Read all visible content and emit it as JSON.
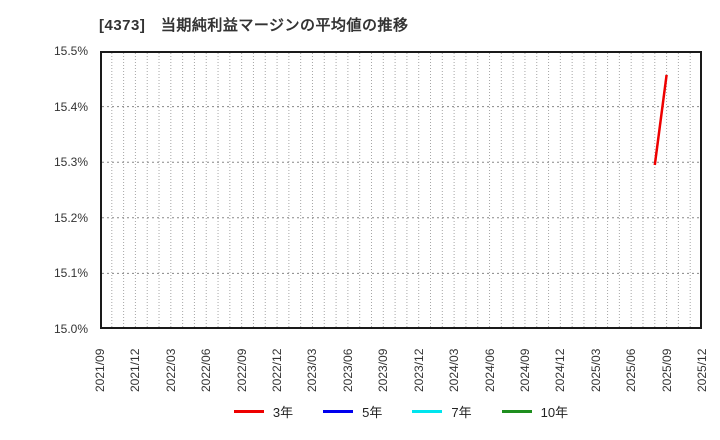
{
  "chart": {
    "title": "[4373]　当期純利益マージンの平均値の推移"
  },
  "chart_data": {
    "type": "line",
    "title": "[4373]　当期純利益マージンの平均値の推移",
    "xlabel": "",
    "ylabel": "",
    "y_unit": "%",
    "ylim": [
      15.0,
      15.5
    ],
    "y_tick_step": 0.1,
    "y_tick_labels": [
      "15.5%",
      "15.4%",
      "15.3%",
      "15.2%",
      "15.1%",
      "15.0%"
    ],
    "x_start": "2021/09",
    "x_end": "2025/12",
    "x_tick_labels": [
      "2021/09",
      "2021/12",
      "2022/03",
      "2022/06",
      "2022/09",
      "2022/12",
      "2023/03",
      "2023/06",
      "2023/09",
      "2023/12",
      "2024/03",
      "2024/06",
      "2024/09",
      "2024/12",
      "2025/03",
      "2025/06",
      "2025/09",
      "2025/12"
    ],
    "grid": {
      "vertical": "monthly, dotted gray",
      "horizontal": "every 0.1%, dotted gray",
      "border_color": "#1a1a1a"
    },
    "grid_colors": {
      "vertical": "#a6a6a6",
      "horizontal": "#888888"
    },
    "legend_position": "bottom-center",
    "series": [
      {
        "name": "3年",
        "color": "#ee0000",
        "points": [
          {
            "x": "2025/08",
            "y": 15.295
          },
          {
            "x": "2025/09",
            "y": 15.457
          }
        ]
      },
      {
        "name": "5年",
        "color": "#0000ee",
        "points": []
      },
      {
        "name": "7年",
        "color": "#00e5ee",
        "points": []
      },
      {
        "name": "10年",
        "color": "#1e8e1e",
        "points": []
      }
    ]
  }
}
